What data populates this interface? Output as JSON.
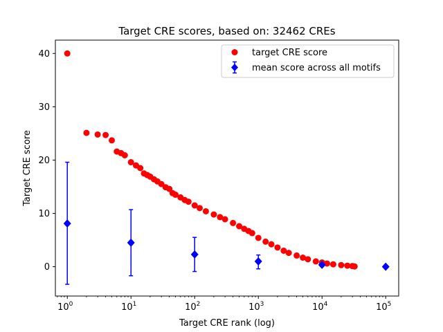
{
  "chart_data": {
    "type": "scatter",
    "title": "Target CRE scores, based on: 32462 CREs",
    "xlabel": "Target CRE rank (log)",
    "ylabel": "Target CRE score",
    "x_scale": "log",
    "xlim": [
      0.65,
      160000
    ],
    "ylim": [
      -5.5,
      42.5
    ],
    "x_ticks": [
      {
        "value": 1,
        "base": "10",
        "exp": "0"
      },
      {
        "value": 10,
        "base": "10",
        "exp": "1"
      },
      {
        "value": 100,
        "base": "10",
        "exp": "2"
      },
      {
        "value": 1000,
        "base": "10",
        "exp": "3"
      },
      {
        "value": 10000,
        "base": "10",
        "exp": "4"
      },
      {
        "value": 100000,
        "base": "10",
        "exp": "5"
      }
    ],
    "y_ticks": [
      {
        "value": 0,
        "label": "0"
      },
      {
        "value": 10,
        "label": "10"
      },
      {
        "value": 20,
        "label": "20"
      },
      {
        "value": 30,
        "label": "30"
      },
      {
        "value": 40,
        "label": "40"
      }
    ],
    "grid": false,
    "legend_position": "top-right",
    "series": [
      {
        "name": "target CRE score",
        "marker": "circle",
        "color": "#ff0000",
        "points": [
          [
            1,
            40.0
          ],
          [
            2,
            25.1
          ],
          [
            3,
            24.8
          ],
          [
            4,
            24.7
          ],
          [
            5,
            23.7
          ],
          [
            6,
            21.6
          ],
          [
            7,
            21.3
          ],
          [
            8,
            20.9
          ],
          [
            10,
            19.6
          ],
          [
            12,
            19.0
          ],
          [
            14,
            18.5
          ],
          [
            16,
            17.5
          ],
          [
            18,
            17.2
          ],
          [
            20,
            16.9
          ],
          [
            23,
            16.4
          ],
          [
            26,
            16.0
          ],
          [
            30,
            15.5
          ],
          [
            35,
            14.9
          ],
          [
            40,
            14.6
          ],
          [
            45,
            13.8
          ],
          [
            50,
            13.5
          ],
          [
            60,
            13.0
          ],
          [
            70,
            12.5
          ],
          [
            80,
            12.2
          ],
          [
            100,
            11.5
          ],
          [
            120,
            11.0
          ],
          [
            150,
            10.4
          ],
          [
            200,
            9.8
          ],
          [
            250,
            9.3
          ],
          [
            300,
            8.9
          ],
          [
            400,
            8.2
          ],
          [
            500,
            7.6
          ],
          [
            600,
            7.1
          ],
          [
            700,
            6.7
          ],
          [
            800,
            6.3
          ],
          [
            1000,
            5.4
          ],
          [
            1300,
            4.7
          ],
          [
            1600,
            4.2
          ],
          [
            2000,
            3.6
          ],
          [
            2500,
            3.0
          ],
          [
            3000,
            2.6
          ],
          [
            4000,
            2.1
          ],
          [
            5000,
            1.7
          ],
          [
            6000,
            1.4
          ],
          [
            8000,
            1.0
          ],
          [
            10000,
            0.8
          ],
          [
            12000,
            0.6
          ],
          [
            15000,
            0.45
          ],
          [
            20000,
            0.3
          ],
          [
            25000,
            0.2
          ],
          [
            30000,
            0.12
          ],
          [
            32462,
            0.05
          ]
        ]
      },
      {
        "name": "mean score across all motifs",
        "marker": "diamond",
        "color": "#0000ff",
        "points": [
          {
            "x": 1,
            "y": 8.1,
            "low": -3.3,
            "high": 19.6
          },
          {
            "x": 10,
            "y": 4.5,
            "low": -1.7,
            "high": 10.7
          },
          {
            "x": 100,
            "y": 2.3,
            "low": -0.9,
            "high": 5.5
          },
          {
            "x": 1000,
            "y": 1.0,
            "low": -0.4,
            "high": 2.2
          },
          {
            "x": 10000,
            "y": 0.35,
            "low": 0.15,
            "high": 0.55
          },
          {
            "x": 100000,
            "y": 0.0,
            "low": 0.0,
            "high": 0.0
          }
        ]
      }
    ]
  }
}
